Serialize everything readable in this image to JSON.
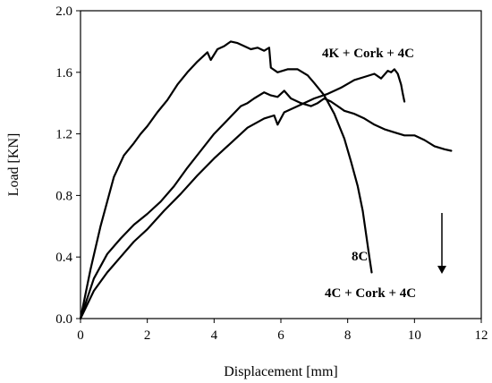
{
  "chart_data": {
    "type": "line",
    "title": "",
    "xlabel": "Displacement [mm]",
    "ylabel": "Load [KN]",
    "xlim": [
      0,
      12
    ],
    "ylim": [
      0,
      2.0
    ],
    "xticks": [
      "0",
      "2",
      "4",
      "6",
      "8",
      "10",
      "12"
    ],
    "yticks": [
      "0.0",
      "0.4",
      "0.8",
      "1.2",
      "1.6",
      "2.0"
    ],
    "grid": false,
    "legend": "none",
    "series": [
      {
        "name": "4K + Cork + 4C",
        "x": [
          0,
          0.3,
          0.6,
          1.0,
          1.3,
          1.6,
          1.8,
          2.0,
          2.3,
          2.6,
          2.9,
          3.2,
          3.5,
          3.8,
          3.9,
          4.1,
          4.3,
          4.5,
          4.7,
          5.0,
          5.1,
          5.3,
          5.5,
          5.65,
          5.7,
          5.9,
          6.2,
          6.5,
          6.8,
          7.0,
          7.3,
          7.6,
          7.9,
          8.1,
          8.3,
          8.45,
          8.55,
          8.65,
          8.72
        ],
        "y": [
          0,
          0.32,
          0.6,
          0.92,
          1.06,
          1.14,
          1.2,
          1.25,
          1.34,
          1.42,
          1.52,
          1.6,
          1.67,
          1.73,
          1.68,
          1.75,
          1.77,
          1.8,
          1.79,
          1.76,
          1.75,
          1.76,
          1.74,
          1.76,
          1.63,
          1.6,
          1.62,
          1.62,
          1.58,
          1.53,
          1.45,
          1.33,
          1.17,
          1.02,
          0.86,
          0.7,
          0.55,
          0.4,
          0.3
        ]
      },
      {
        "name": "8C",
        "x": [
          0,
          0.4,
          0.8,
          1.2,
          1.6,
          2.0,
          2.4,
          2.8,
          3.2,
          3.6,
          4.0,
          4.4,
          4.8,
          5.0,
          5.2,
          5.5,
          5.7,
          5.9,
          6.1,
          6.3,
          6.6,
          6.9,
          7.1,
          7.3,
          7.5,
          7.7,
          7.9,
          8.2,
          8.5,
          8.8,
          9.1,
          9.4,
          9.7,
          10.0,
          10.3,
          10.6,
          10.9,
          11.1
        ],
        "y": [
          0,
          0.26,
          0.42,
          0.52,
          0.61,
          0.68,
          0.76,
          0.86,
          0.98,
          1.09,
          1.2,
          1.29,
          1.38,
          1.4,
          1.43,
          1.47,
          1.45,
          1.44,
          1.48,
          1.43,
          1.4,
          1.38,
          1.4,
          1.43,
          1.41,
          1.38,
          1.35,
          1.33,
          1.3,
          1.26,
          1.23,
          1.21,
          1.19,
          1.19,
          1.16,
          1.12,
          1.1,
          1.09
        ]
      },
      {
        "name": "4C + Cork + 4C",
        "x": [
          0,
          0.4,
          0.8,
          1.2,
          1.6,
          2.0,
          2.5,
          3.0,
          3.5,
          4.0,
          4.5,
          5.0,
          5.5,
          5.8,
          5.9,
          6.1,
          6.5,
          7.0,
          7.4,
          7.8,
          8.2,
          8.5,
          8.8,
          9.0,
          9.2,
          9.3,
          9.4,
          9.5,
          9.6,
          9.65,
          9.7
        ],
        "y": [
          0,
          0.18,
          0.3,
          0.4,
          0.5,
          0.58,
          0.7,
          0.81,
          0.93,
          1.04,
          1.14,
          1.24,
          1.3,
          1.32,
          1.26,
          1.34,
          1.38,
          1.43,
          1.46,
          1.5,
          1.55,
          1.57,
          1.59,
          1.56,
          1.61,
          1.6,
          1.62,
          1.59,
          1.52,
          1.46,
          1.41
        ]
      }
    ],
    "annotations": [
      {
        "text": "4K + Cork + 4C"
      },
      {
        "text": "8C"
      },
      {
        "text": "4C + Cork + 4C"
      }
    ]
  }
}
